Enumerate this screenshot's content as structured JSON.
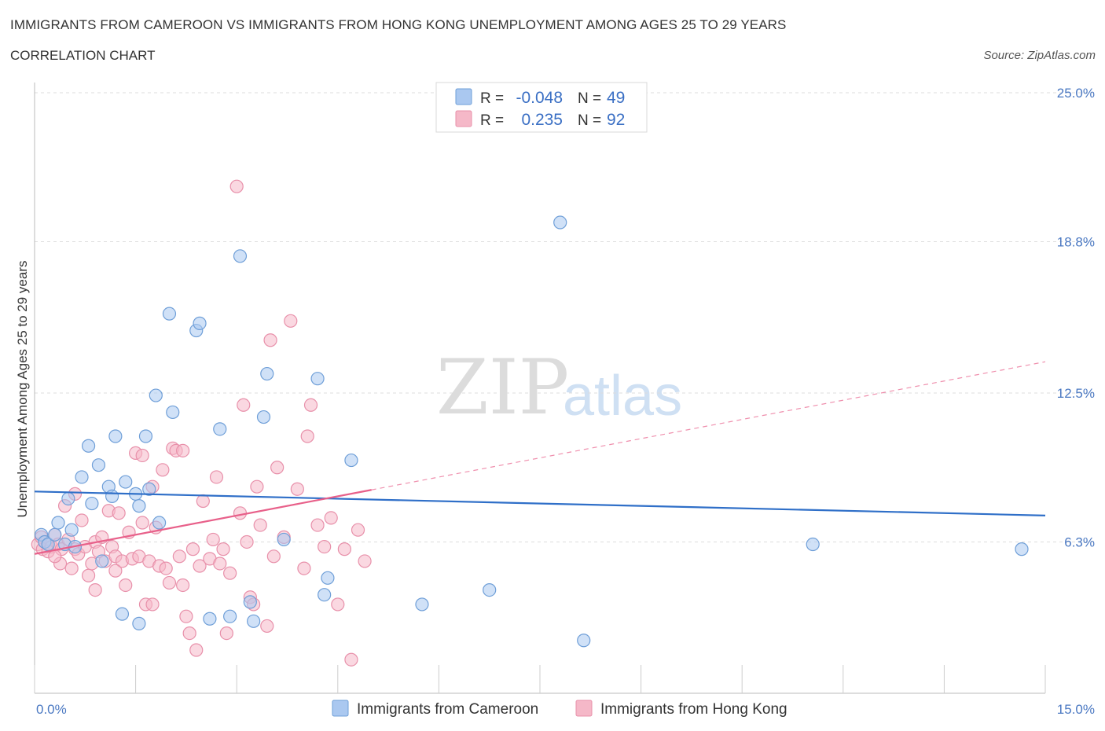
{
  "header": {
    "title": "IMMIGRANTS FROM CAMEROON VS IMMIGRANTS FROM HONG KONG UNEMPLOYMENT AMONG AGES 25 TO 29 YEARS",
    "subtitle": "CORRELATION CHART",
    "source": "Source: ZipAtlas.com"
  },
  "watermark": {
    "zip": "ZIP",
    "atlas": "atlas"
  },
  "legend_box": {
    "rows": [
      {
        "r_label": "R =",
        "r_value": "-0.048",
        "n_label": "N =",
        "n_value": "49",
        "color": "#aac8f0"
      },
      {
        "r_label": "R =",
        "r_value": "0.235",
        "n_label": "N =",
        "n_value": "92",
        "color": "#f5b8c8"
      }
    ]
  },
  "bottom_legend": {
    "items": [
      {
        "label": "Immigrants from Cameroon",
        "color": "#aac8f0"
      },
      {
        "label": "Immigrants from Hong Kong",
        "color": "#f5b8c8"
      }
    ]
  },
  "chart_data": {
    "type": "scatter",
    "title": "IMMIGRANTS FROM CAMEROON VS IMMIGRANTS FROM HONG KONG UNEMPLOYMENT AMONG AGES 25 TO 29 YEARS",
    "subtitle": "CORRELATION CHART",
    "xlabel": "",
    "ylabel": "Unemployment Among Ages 25 to 29 years",
    "xlim": [
      0,
      15
    ],
    "ylim": [
      0,
      25
    ],
    "x_tick_labels": [
      "0.0%",
      "15.0%"
    ],
    "y_ticks": [
      6.3,
      12.5,
      18.8,
      25.0
    ],
    "y_tick_labels": [
      "6.3%",
      "12.5%",
      "18.8%",
      "25.0%"
    ],
    "grid": true,
    "legend_position": "top-center",
    "series": [
      {
        "name": "Immigrants from Cameroon",
        "color": "#aac8f0",
        "stroke": "#6f9fd8",
        "line_color": "#2f6fc8",
        "trend": {
          "x": [
            0,
            15
          ],
          "y": [
            8.4,
            7.4
          ],
          "dashed_from": null
        },
        "points": [
          [
            0.1,
            6.6
          ],
          [
            0.15,
            6.3
          ],
          [
            0.2,
            6.2
          ],
          [
            0.3,
            6.6
          ],
          [
            0.35,
            7.1
          ],
          [
            0.45,
            6.2
          ],
          [
            0.5,
            8.1
          ],
          [
            0.55,
            6.8
          ],
          [
            0.6,
            6.1
          ],
          [
            0.7,
            9.0
          ],
          [
            0.8,
            10.3
          ],
          [
            0.85,
            7.9
          ],
          [
            0.95,
            9.5
          ],
          [
            1.0,
            5.5
          ],
          [
            1.1,
            8.6
          ],
          [
            1.15,
            8.2
          ],
          [
            1.2,
            10.7
          ],
          [
            1.3,
            3.3
          ],
          [
            1.35,
            8.8
          ],
          [
            1.5,
            8.3
          ],
          [
            1.55,
            7.8
          ],
          [
            1.55,
            2.9
          ],
          [
            1.65,
            10.7
          ],
          [
            1.7,
            8.5
          ],
          [
            1.8,
            12.4
          ],
          [
            1.85,
            7.1
          ],
          [
            2.0,
            15.8
          ],
          [
            2.05,
            11.7
          ],
          [
            2.4,
            15.1
          ],
          [
            2.45,
            15.4
          ],
          [
            2.6,
            3.1
          ],
          [
            2.75,
            11.0
          ],
          [
            2.9,
            3.2
          ],
          [
            3.05,
            18.2
          ],
          [
            3.2,
            3.8
          ],
          [
            3.25,
            3.0
          ],
          [
            3.4,
            11.5
          ],
          [
            3.45,
            13.3
          ],
          [
            3.7,
            6.4
          ],
          [
            4.2,
            13.1
          ],
          [
            4.3,
            4.1
          ],
          [
            4.35,
            4.8
          ],
          [
            4.7,
            9.7
          ],
          [
            5.75,
            3.7
          ],
          [
            6.75,
            4.3
          ],
          [
            7.8,
            19.6
          ],
          [
            8.15,
            2.2
          ],
          [
            11.55,
            6.2
          ],
          [
            14.65,
            6.0
          ]
        ]
      },
      {
        "name": "Immigrants from Hong Kong",
        "color": "#f5b8c8",
        "stroke": "#e890aa",
        "line_color": "#e8608a",
        "trend": {
          "x": [
            0,
            15
          ],
          "y": [
            5.8,
            13.8
          ],
          "solid_until": 5.0
        },
        "points": [
          [
            0.05,
            6.2
          ],
          [
            0.1,
            6.5
          ],
          [
            0.12,
            6.0
          ],
          [
            0.15,
            6.3
          ],
          [
            0.2,
            5.9
          ],
          [
            0.25,
            6.1
          ],
          [
            0.3,
            6.6
          ],
          [
            0.35,
            6.2
          ],
          [
            0.38,
            5.4
          ],
          [
            0.4,
            6.0
          ],
          [
            0.45,
            7.8
          ],
          [
            0.5,
            6.4
          ],
          [
            0.55,
            5.2
          ],
          [
            0.6,
            6.0
          ],
          [
            0.65,
            5.8
          ],
          [
            0.7,
            7.2
          ],
          [
            0.75,
            6.1
          ],
          [
            0.8,
            4.9
          ],
          [
            0.85,
            5.4
          ],
          [
            0.9,
            6.3
          ],
          [
            0.95,
            5.9
          ],
          [
            1.0,
            6.5
          ],
          [
            1.05,
            5.5
          ],
          [
            1.1,
            7.6
          ],
          [
            1.15,
            6.1
          ],
          [
            1.2,
            5.7
          ],
          [
            1.25,
            7.5
          ],
          [
            1.3,
            5.5
          ],
          [
            1.35,
            4.5
          ],
          [
            1.4,
            6.7
          ],
          [
            1.45,
            5.6
          ],
          [
            1.5,
            10.0
          ],
          [
            1.55,
            5.7
          ],
          [
            1.6,
            7.1
          ],
          [
            1.65,
            3.7
          ],
          [
            1.7,
            5.5
          ],
          [
            1.75,
            8.6
          ],
          [
            1.8,
            6.9
          ],
          [
            1.85,
            5.3
          ],
          [
            1.9,
            9.3
          ],
          [
            1.95,
            5.2
          ],
          [
            2.0,
            4.6
          ],
          [
            2.05,
            10.2
          ],
          [
            2.1,
            10.1
          ],
          [
            2.15,
            5.7
          ],
          [
            2.2,
            4.5
          ],
          [
            2.25,
            3.2
          ],
          [
            2.3,
            2.5
          ],
          [
            2.35,
            6.0
          ],
          [
            2.4,
            1.8
          ],
          [
            2.45,
            5.3
          ],
          [
            2.5,
            8.0
          ],
          [
            2.6,
            5.6
          ],
          [
            2.65,
            6.4
          ],
          [
            2.7,
            9.0
          ],
          [
            2.75,
            5.4
          ],
          [
            2.8,
            6.0
          ],
          [
            2.85,
            2.5
          ],
          [
            2.9,
            5.0
          ],
          [
            3.0,
            21.1
          ],
          [
            3.05,
            7.5
          ],
          [
            3.1,
            12.0
          ],
          [
            3.15,
            6.3
          ],
          [
            3.2,
            4.0
          ],
          [
            3.25,
            3.7
          ],
          [
            3.3,
            8.6
          ],
          [
            3.35,
            7.0
          ],
          [
            3.45,
            2.8
          ],
          [
            3.5,
            14.7
          ],
          [
            3.55,
            5.7
          ],
          [
            3.6,
            9.4
          ],
          [
            3.7,
            6.5
          ],
          [
            3.8,
            15.5
          ],
          [
            3.9,
            8.5
          ],
          [
            4.0,
            5.2
          ],
          [
            4.05,
            10.7
          ],
          [
            4.1,
            12.0
          ],
          [
            4.2,
            7.0
          ],
          [
            4.3,
            6.1
          ],
          [
            4.4,
            7.3
          ],
          [
            4.5,
            3.7
          ],
          [
            4.6,
            6.0
          ],
          [
            4.7,
            1.4
          ],
          [
            4.8,
            6.8
          ],
          [
            4.9,
            5.5
          ],
          [
            2.2,
            10.1
          ],
          [
            1.6,
            9.9
          ],
          [
            0.6,
            8.3
          ],
          [
            0.9,
            4.3
          ],
          [
            1.2,
            5.1
          ],
          [
            0.3,
            5.7
          ],
          [
            1.75,
            3.7
          ]
        ]
      }
    ]
  }
}
